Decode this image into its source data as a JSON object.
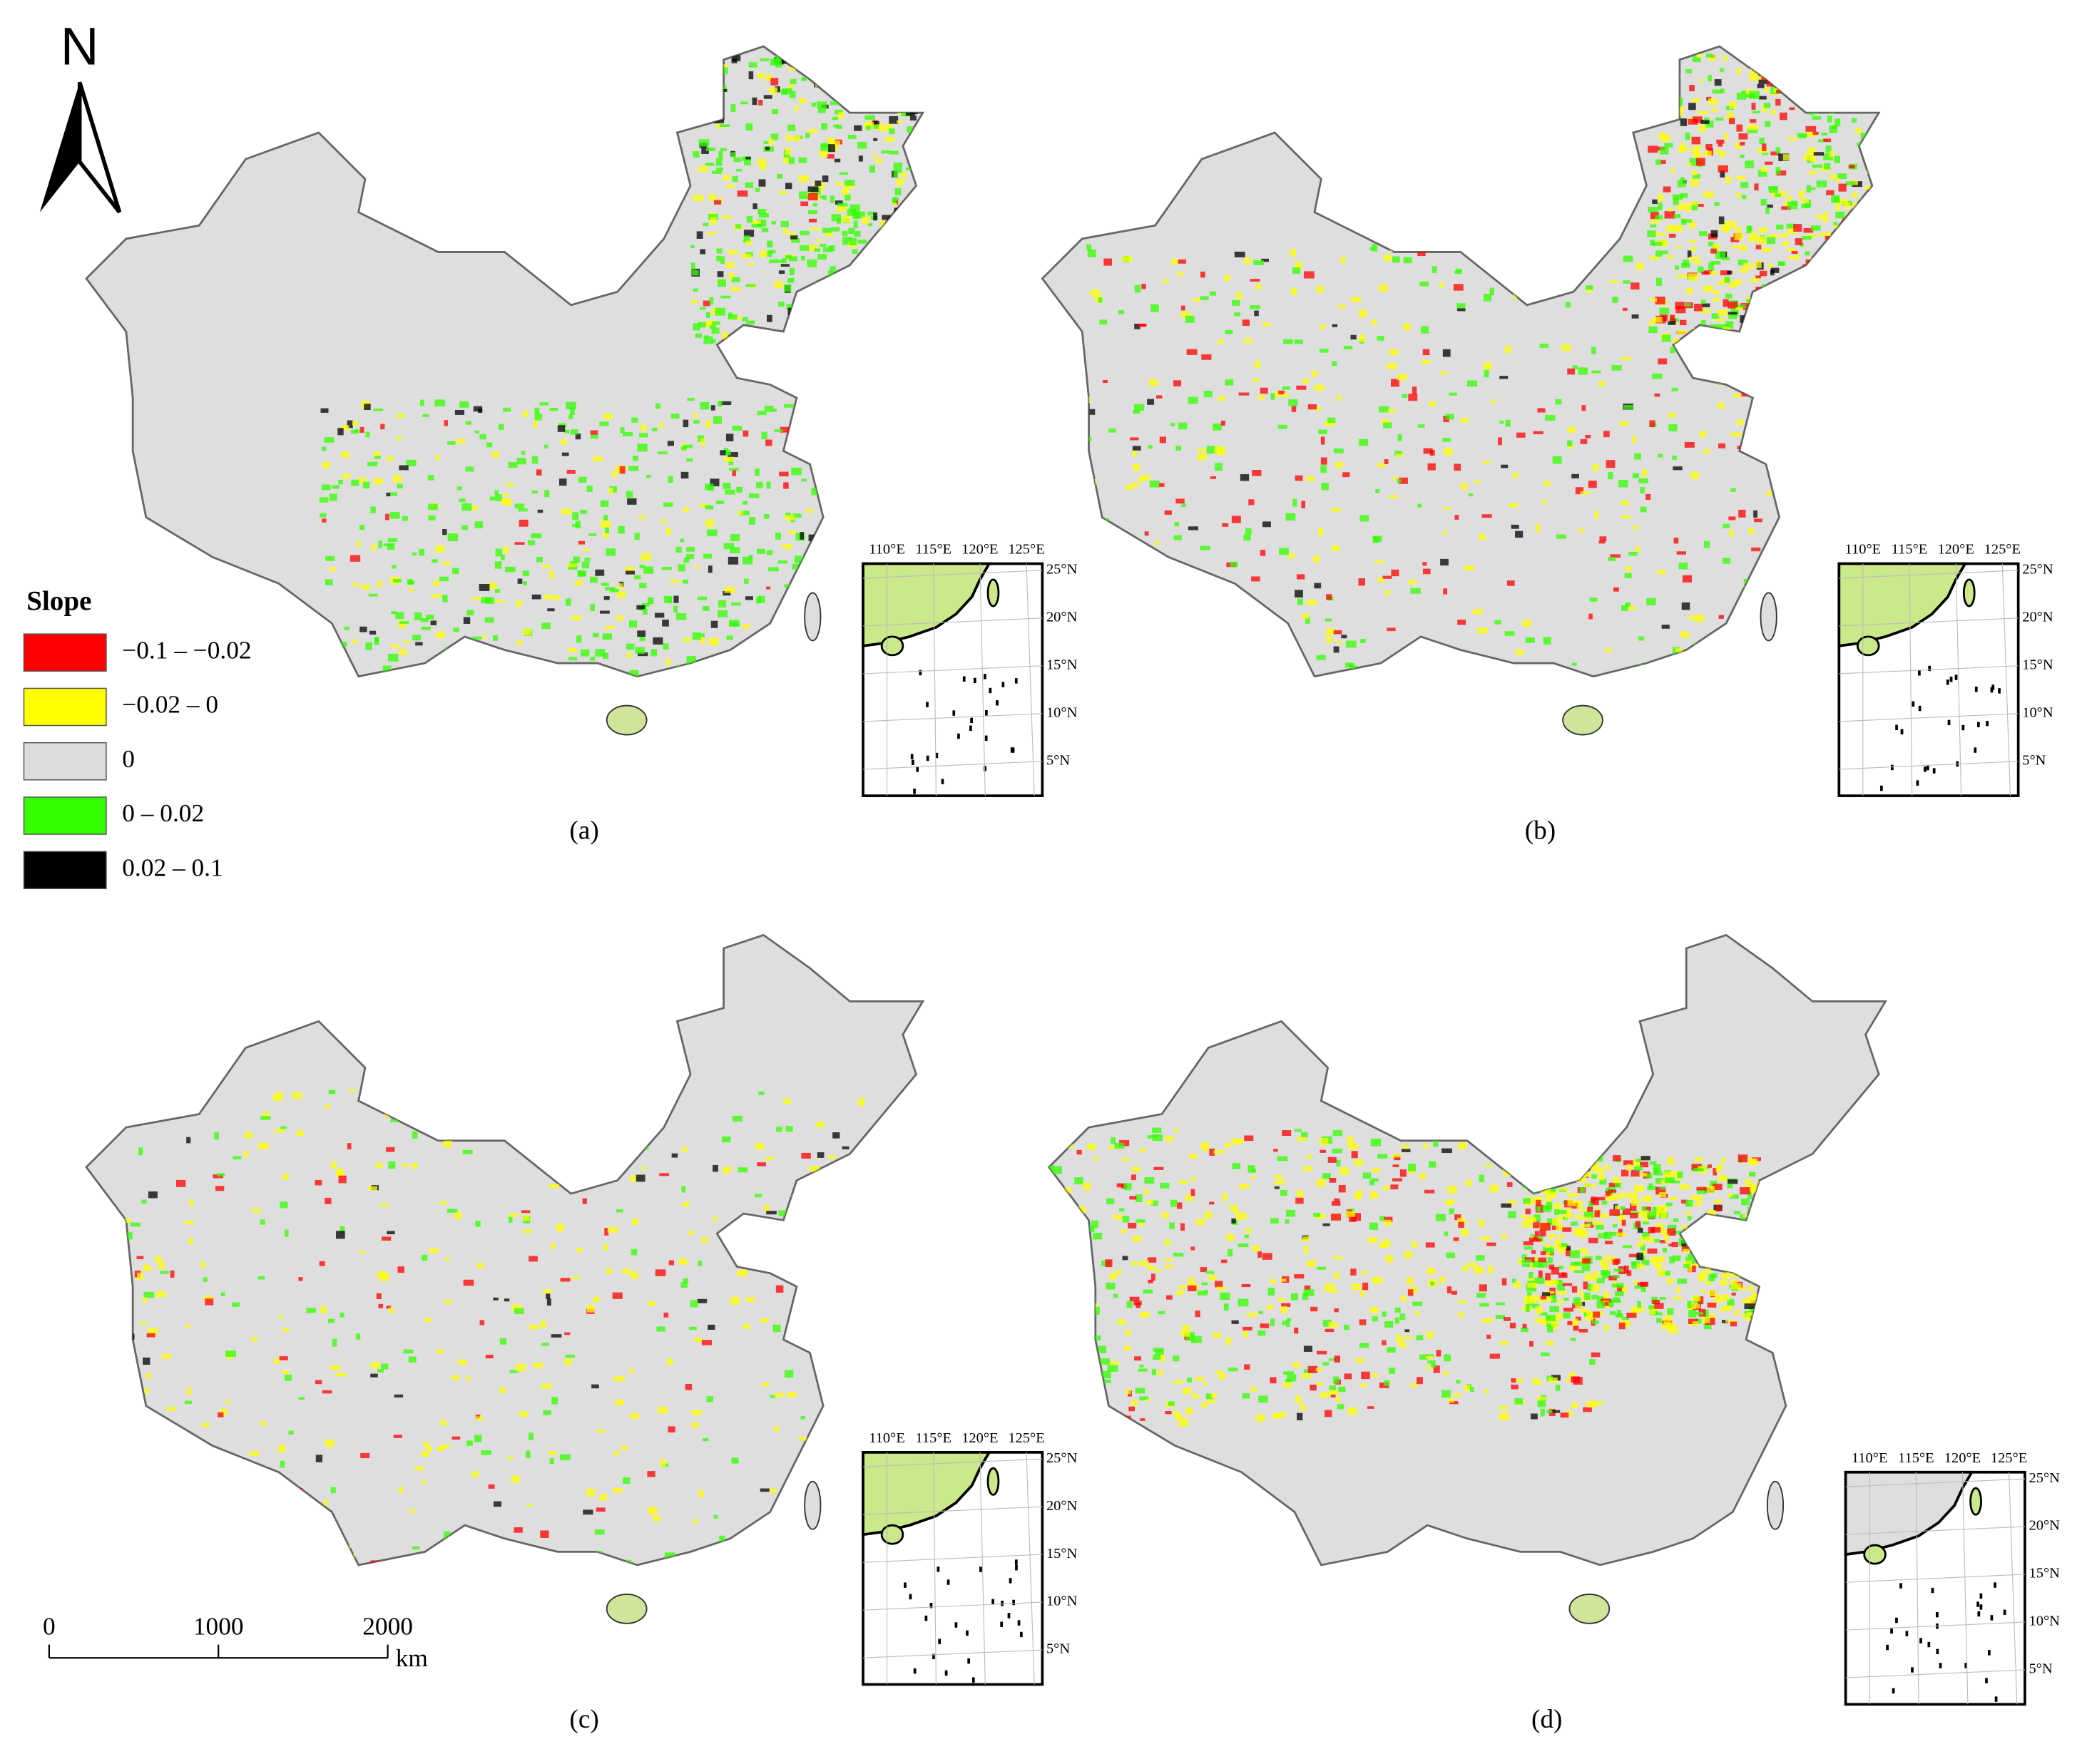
{
  "north_arrow": "N",
  "legend": {
    "title": "Slope",
    "items": [
      {
        "label": "−0.1 – −0.02",
        "color": "#ff0000"
      },
      {
        "label": "−0.02 – 0",
        "color": "#ffff00"
      },
      {
        "label": "0",
        "color": "#dcdcdc"
      },
      {
        "label": "0 – 0.02",
        "color": "#33ff00"
      },
      {
        "label": "0.02 – 0.1",
        "color": "#000000"
      }
    ]
  },
  "scale_bar": {
    "ticks": [
      0,
      1000,
      2000
    ],
    "unit": "km"
  },
  "panels": [
    {
      "label": "(a)"
    },
    {
      "label": "(b)"
    },
    {
      "label": "(c)"
    },
    {
      "label": "(d)"
    }
  ],
  "inset": {
    "lon_labels": [
      "110°E",
      "115°E",
      "120°E",
      "125°E"
    ],
    "lat_labels": [
      "25°N",
      "20°N",
      "15°N",
      "10°N",
      "5°N"
    ]
  }
}
